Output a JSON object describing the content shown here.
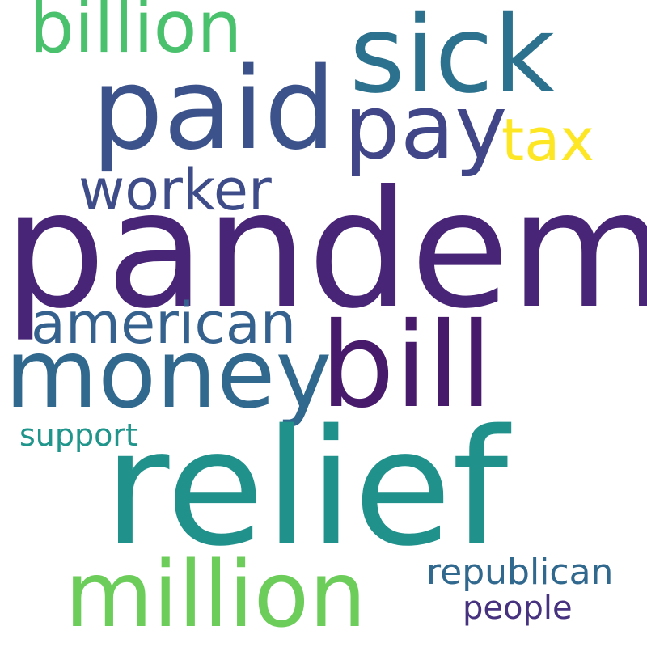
{
  "words": {
    "pandemic": "pandemic",
    "relief": "relief",
    "bill": "bill",
    "paid": "paid",
    "sick": "sick",
    "money": "money",
    "million": "million",
    "pay": "pay",
    "billion": "billion",
    "worker": "worker",
    "american": "american",
    "tax": "tax",
    "republican": "republican",
    "people": "people",
    "support": "support"
  },
  "colors": {
    "background": "#ffffff",
    "pandemic": "#482576",
    "relief": "#21918c",
    "bill": "#481a6c",
    "paid": "#3b528b",
    "sick": "#2c728e",
    "money": "#31688e",
    "million": "#6ccd5a",
    "pay": "#404688",
    "billion": "#4ac16d",
    "worker": "#3e4c8a",
    "american": "#34618d",
    "tax": "#fde725",
    "republican": "#31688e",
    "people": "#46327e",
    "support": "#1f958b"
  }
}
